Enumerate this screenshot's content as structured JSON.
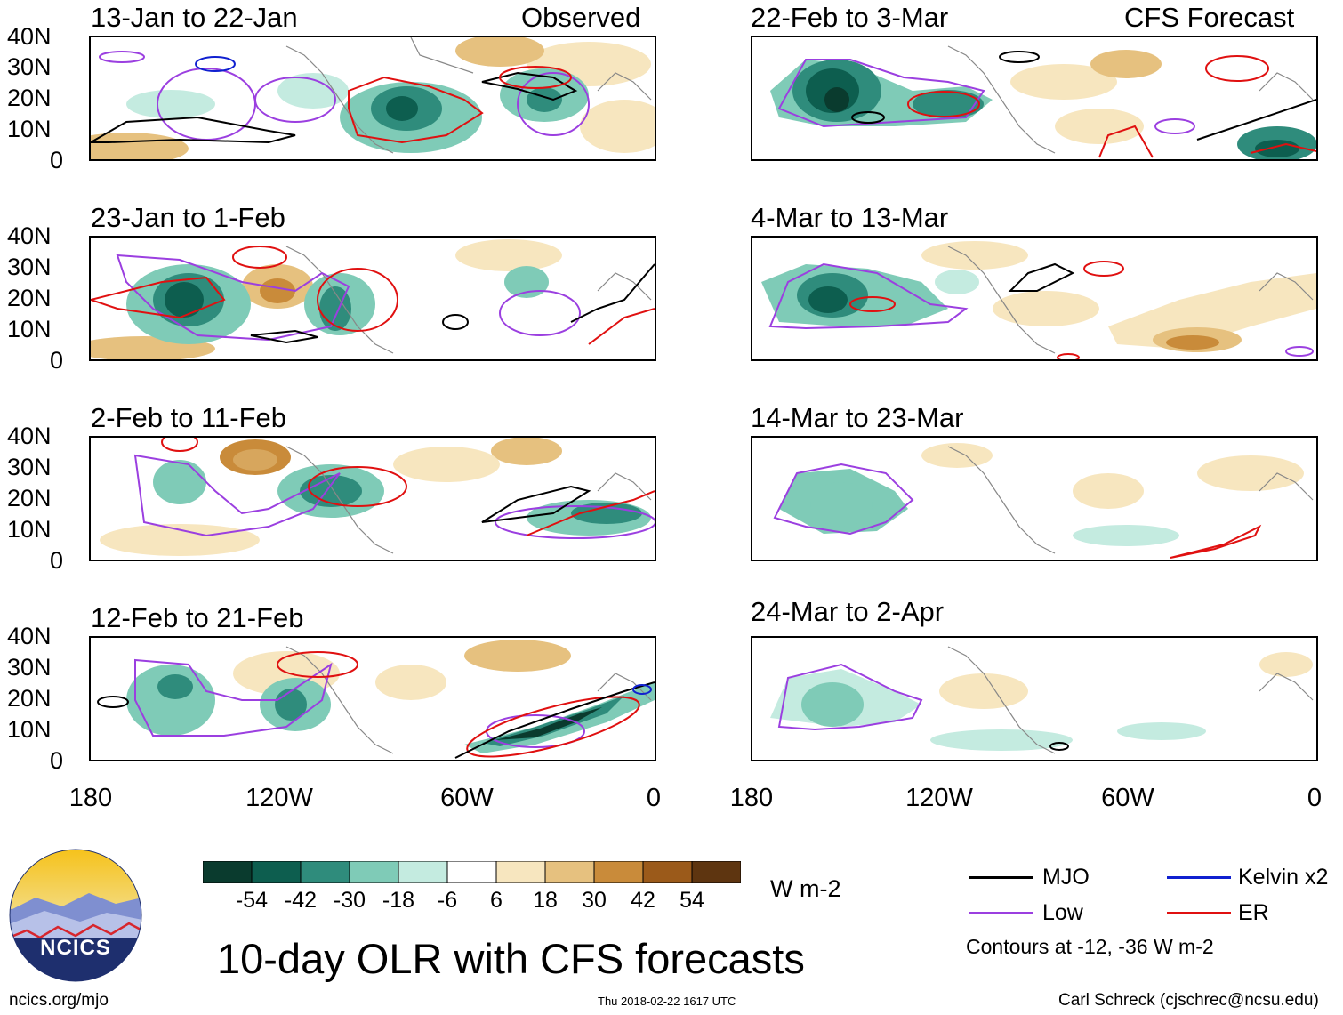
{
  "observed_label": "Observed",
  "forecast_label": "CFS Forecast",
  "latitude_labels": [
    "40N",
    "30N",
    "20N",
    "10N",
    "0"
  ],
  "longitude_labels": [
    "180",
    "120W",
    "60W",
    "0"
  ],
  "panels": [
    {
      "title": "13-Jan to 22-Jan",
      "type": "observed"
    },
    {
      "title": "23-Jan to 1-Feb",
      "type": "observed"
    },
    {
      "title": "2-Feb to 11-Feb",
      "type": "observed"
    },
    {
      "title": "12-Feb to 21-Feb",
      "type": "observed"
    },
    {
      "title": "22-Feb to 3-Mar",
      "type": "forecast"
    },
    {
      "title": "4-Mar to 13-Mar",
      "type": "forecast"
    },
    {
      "title": "14-Mar to 23-Mar",
      "type": "forecast"
    },
    {
      "title": "24-Mar to 2-Apr",
      "type": "forecast"
    }
  ],
  "colorbar": {
    "labels": [
      "-54",
      "-42",
      "-30",
      "-18",
      "-6",
      "6",
      "18",
      "30",
      "42",
      "54"
    ],
    "colors": [
      "#0a3b2e",
      "#0d5e4f",
      "#2f8c7c",
      "#7fcbb7",
      "#c4ebe0",
      "#ffffff",
      "#f7e6bf",
      "#e6c17f",
      "#c98b3a",
      "#9b5a1a",
      "#5e3510"
    ],
    "units": "W m-2"
  },
  "legend": {
    "items": [
      {
        "label": "MJO",
        "color": "#000000"
      },
      {
        "label": "Kelvin x2",
        "color": "#1020d0"
      },
      {
        "label": "Low",
        "color": "#9b3fe0"
      },
      {
        "label": "ER",
        "color": "#e01010"
      }
    ],
    "note": "Contours at -12, -36 W m-2"
  },
  "logo_text": "NCICS",
  "main_title": "10-day OLR with CFS forecasts",
  "footer": {
    "left": "ncics.org/mjo",
    "center": "Thu 2018-02-22 1617 UTC",
    "right": "Carl Schreck (cjschrec@ncsu.edu)"
  }
}
